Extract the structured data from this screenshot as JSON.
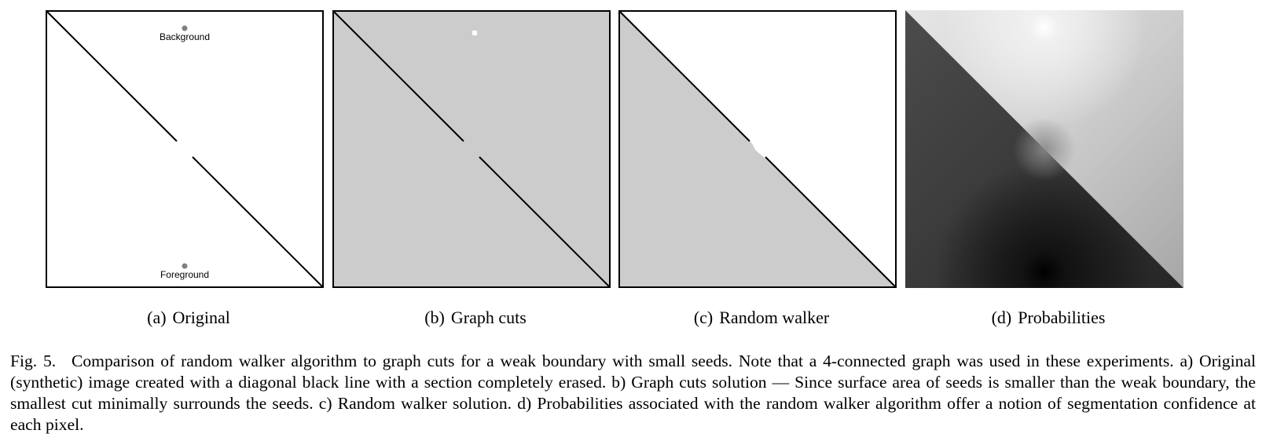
{
  "panels": [
    {
      "label": "(a)",
      "title": "Original"
    },
    {
      "label": "(b)",
      "title": "Graph cuts"
    },
    {
      "label": "(c)",
      "title": "Random walker"
    },
    {
      "label": "(d)",
      "title": "Probabilities"
    }
  ],
  "seeds": {
    "background": "Background",
    "foreground": "Foreground"
  },
  "caption": {
    "figure": "Fig. 5.",
    "text": "Comparison of random walker algorithm to graph cuts for a weak boundary with small seeds. Note that a 4-connected graph was used in these experiments. a) Original (synthetic) image created with a diagonal black line with a section completely erased. b) Graph cuts solution — Since surface area of seeds is smaller than the weak boundary, the smallest cut minimally surrounds the seeds. c) Random walker solution. d) Probabilities associated with the random walker algorithm offer a notion of segmentation confidence at each pixel."
  },
  "colors": {
    "border": "#000000",
    "segment_gray": "#cccccc",
    "seed_dot": "#808080"
  }
}
